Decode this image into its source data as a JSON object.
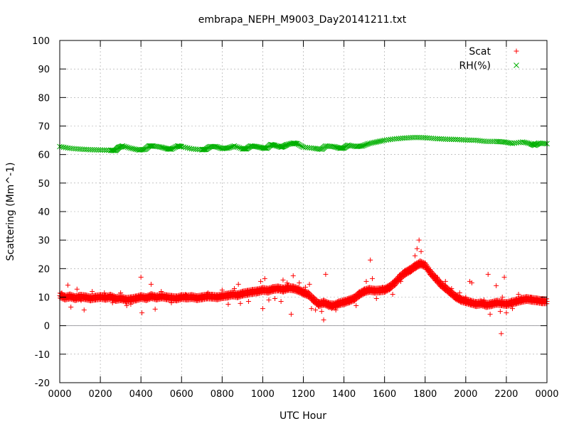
{
  "chart_data": {
    "type": "scatter",
    "title": "embrapa_NEPH_M9003_Day20141211.txt",
    "xlabel": "UTC Hour",
    "ylabel": "Scattering (Mm^-1)",
    "xlim": [
      0,
      24
    ],
    "ylim": [
      -20,
      100
    ],
    "grid": true,
    "legend_position": "top-right",
    "x_tick_values": [
      0,
      2,
      4,
      6,
      8,
      10,
      12,
      14,
      16,
      18,
      20,
      22,
      24
    ],
    "x_tick_labels": [
      "0000",
      "0200",
      "0400",
      "0600",
      "0800",
      "1000",
      "1200",
      "1400",
      "1600",
      "1800",
      "2000",
      "2200",
      "0000"
    ],
    "y_ticks": [
      -20,
      -10,
      0,
      10,
      20,
      30,
      40,
      50,
      60,
      70,
      80,
      90,
      100
    ],
    "zero_line": 0,
    "series": [
      {
        "name": "Scat",
        "marker": "plus",
        "color": "#ff0000",
        "points": [
          [
            0.0,
            10.5
          ],
          [
            0.25,
            9.8
          ],
          [
            0.5,
            10.2
          ],
          [
            0.75,
            9.6
          ],
          [
            1.0,
            10.1
          ],
          [
            1.25,
            9.9
          ],
          [
            1.5,
            9.5
          ],
          [
            1.75,
            9.8
          ],
          [
            2.0,
            10.0
          ],
          [
            2.25,
            9.7
          ],
          [
            2.5,
            10.1
          ],
          [
            2.75,
            9.3
          ],
          [
            3.0,
            9.6
          ],
          [
            3.25,
            9.0
          ],
          [
            3.5,
            9.2
          ],
          [
            3.75,
            9.5
          ],
          [
            4.0,
            10.0
          ],
          [
            4.25,
            9.6
          ],
          [
            4.5,
            10.3
          ],
          [
            4.75,
            9.8
          ],
          [
            5.0,
            10.2
          ],
          [
            5.25,
            9.9
          ],
          [
            5.5,
            9.7
          ],
          [
            5.75,
            9.5
          ],
          [
            6.0,
            10.0
          ],
          [
            6.25,
            9.8
          ],
          [
            6.5,
            10.0
          ],
          [
            6.75,
            9.6
          ],
          [
            7.0,
            9.9
          ],
          [
            7.25,
            10.2
          ],
          [
            7.5,
            10.1
          ],
          [
            7.75,
            9.9
          ],
          [
            8.0,
            10.3
          ],
          [
            8.25,
            10.5
          ],
          [
            8.5,
            10.9
          ],
          [
            8.75,
            10.6
          ],
          [
            9.0,
            11.2
          ],
          [
            9.25,
            11.5
          ],
          [
            9.5,
            11.8
          ],
          [
            9.75,
            12.0
          ],
          [
            10.0,
            12.5
          ],
          [
            10.25,
            12.2
          ],
          [
            10.5,
            12.8
          ],
          [
            10.75,
            13.0
          ],
          [
            11.0,
            12.6
          ],
          [
            11.25,
            13.2
          ],
          [
            11.5,
            13.0
          ],
          [
            11.75,
            12.4
          ],
          [
            12.0,
            11.5
          ],
          [
            12.25,
            10.8
          ],
          [
            12.5,
            9.0
          ],
          [
            12.75,
            7.5
          ],
          [
            13.0,
            8.0
          ],
          [
            13.25,
            7.2
          ],
          [
            13.5,
            7.0
          ],
          [
            13.75,
            7.8
          ],
          [
            14.0,
            8.2
          ],
          [
            14.25,
            8.8
          ],
          [
            14.5,
            9.5
          ],
          [
            14.75,
            11.0
          ],
          [
            15.0,
            12.0
          ],
          [
            15.25,
            12.5
          ],
          [
            15.5,
            12.2
          ],
          [
            15.75,
            12.3
          ],
          [
            16.0,
            12.5
          ],
          [
            16.25,
            13.5
          ],
          [
            16.5,
            15.0
          ],
          [
            16.75,
            17.0
          ],
          [
            17.0,
            18.5
          ],
          [
            17.25,
            19.5
          ],
          [
            17.5,
            20.8
          ],
          [
            17.75,
            21.8
          ],
          [
            18.0,
            21.0
          ],
          [
            18.25,
            18.5
          ],
          [
            18.5,
            16.5
          ],
          [
            18.75,
            14.5
          ],
          [
            19.0,
            13.0
          ],
          [
            19.25,
            11.5
          ],
          [
            19.5,
            10.0
          ],
          [
            19.75,
            9.0
          ],
          [
            20.0,
            8.5
          ],
          [
            20.25,
            8.0
          ],
          [
            20.5,
            7.5
          ],
          [
            20.75,
            7.8
          ],
          [
            21.0,
            7.2
          ],
          [
            21.25,
            7.5
          ],
          [
            21.5,
            8.0
          ],
          [
            21.75,
            7.8
          ],
          [
            22.0,
            7.5
          ],
          [
            22.25,
            8.0
          ],
          [
            22.5,
            8.5
          ],
          [
            22.75,
            9.0
          ],
          [
            23.0,
            9.3
          ],
          [
            23.25,
            9.0
          ],
          [
            23.5,
            8.8
          ],
          [
            23.75,
            8.5
          ],
          [
            24.0,
            8.5
          ]
        ],
        "outliers": [
          [
            0.1,
            11.5
          ],
          [
            0.4,
            14.2
          ],
          [
            0.55,
            6.5
          ],
          [
            0.85,
            12.8
          ],
          [
            1.05,
            8.8
          ],
          [
            1.2,
            5.5
          ],
          [
            1.6,
            12.0
          ],
          [
            2.2,
            11.5
          ],
          [
            2.6,
            8.0
          ],
          [
            3.0,
            11.5
          ],
          [
            3.3,
            7.0
          ],
          [
            3.5,
            7.5
          ],
          [
            4.0,
            17.0
          ],
          [
            4.05,
            4.5
          ],
          [
            4.5,
            14.5
          ],
          [
            4.7,
            5.8
          ],
          [
            5.0,
            12.0
          ],
          [
            5.5,
            8.0
          ],
          [
            6.2,
            11.0
          ],
          [
            6.8,
            9.5
          ],
          [
            7.3,
            11.5
          ],
          [
            8.0,
            12.5
          ],
          [
            8.3,
            7.5
          ],
          [
            8.6,
            13.0
          ],
          [
            8.8,
            14.5
          ],
          [
            8.9,
            7.8
          ],
          [
            9.3,
            8.5
          ],
          [
            9.9,
            15.5
          ],
          [
            10.0,
            6.0
          ],
          [
            10.1,
            16.5
          ],
          [
            10.3,
            9.0
          ],
          [
            10.6,
            9.5
          ],
          [
            10.9,
            8.5
          ],
          [
            11.0,
            16.0
          ],
          [
            11.2,
            15.0
          ],
          [
            11.4,
            4.0
          ],
          [
            11.5,
            17.5
          ],
          [
            11.8,
            15.0
          ],
          [
            12.1,
            13.5
          ],
          [
            12.3,
            14.5
          ],
          [
            12.4,
            6.0
          ],
          [
            12.6,
            5.5
          ],
          [
            12.9,
            5.0
          ],
          [
            13.0,
            2.0
          ],
          [
            13.1,
            18.0
          ],
          [
            13.4,
            6.0
          ],
          [
            13.6,
            5.5
          ],
          [
            14.2,
            9.0
          ],
          [
            14.6,
            7.0
          ],
          [
            15.1,
            15.5
          ],
          [
            15.3,
            23.0
          ],
          [
            15.4,
            16.5
          ],
          [
            15.6,
            9.5
          ],
          [
            15.9,
            13.5
          ],
          [
            16.4,
            11.0
          ],
          [
            16.8,
            15.5
          ],
          [
            17.3,
            19.0
          ],
          [
            17.5,
            24.5
          ],
          [
            17.6,
            27.0
          ],
          [
            17.7,
            30.0
          ],
          [
            17.8,
            26.0
          ],
          [
            17.9,
            21.5
          ],
          [
            18.2,
            19.0
          ],
          [
            18.6,
            17.0
          ],
          [
            19.0,
            15.5
          ],
          [
            19.3,
            13.0
          ],
          [
            19.7,
            11.5
          ],
          [
            20.0,
            10.0
          ],
          [
            20.2,
            15.5
          ],
          [
            20.3,
            15.0
          ],
          [
            20.5,
            8.5
          ],
          [
            20.9,
            9.0
          ],
          [
            21.1,
            18.0
          ],
          [
            21.2,
            4.0
          ],
          [
            21.5,
            14.0
          ],
          [
            21.7,
            5.0
          ],
          [
            21.75,
            -2.8
          ],
          [
            21.8,
            10.0
          ],
          [
            21.9,
            17.0
          ],
          [
            22.0,
            4.5
          ],
          [
            22.3,
            6.0
          ],
          [
            22.6,
            11.0
          ],
          [
            23.2,
            10.0
          ],
          [
            23.8,
            9.5
          ]
        ]
      },
      {
        "name": "RH(%)",
        "marker": "cross",
        "color": "#00b000",
        "points": [
          [
            0.0,
            62.8
          ],
          [
            0.5,
            62.2
          ],
          [
            1.0,
            61.9
          ],
          [
            1.5,
            61.7
          ],
          [
            2.0,
            61.6
          ],
          [
            2.5,
            61.5
          ],
          [
            2.75,
            61.4
          ],
          [
            2.9,
            62.5
          ],
          [
            3.1,
            63.0
          ],
          [
            3.5,
            62.2
          ],
          [
            3.9,
            61.6
          ],
          [
            4.2,
            61.8
          ],
          [
            4.4,
            63.0
          ],
          [
            4.6,
            63.0
          ],
          [
            5.0,
            62.6
          ],
          [
            5.3,
            62.0
          ],
          [
            5.5,
            61.9
          ],
          [
            5.8,
            63.0
          ],
          [
            6.0,
            62.8
          ],
          [
            6.5,
            62.0
          ],
          [
            7.0,
            61.7
          ],
          [
            7.2,
            61.8
          ],
          [
            7.4,
            62.8
          ],
          [
            7.7,
            62.8
          ],
          [
            8.0,
            62.1
          ],
          [
            8.3,
            62.3
          ],
          [
            8.6,
            63.0
          ],
          [
            9.0,
            62.0
          ],
          [
            9.2,
            62.0
          ],
          [
            9.4,
            63.0
          ],
          [
            9.7,
            62.8
          ],
          [
            10.0,
            62.3
          ],
          [
            10.2,
            62.2
          ],
          [
            10.4,
            63.5
          ],
          [
            10.6,
            63.2
          ],
          [
            10.9,
            62.6
          ],
          [
            11.0,
            62.8
          ],
          [
            11.2,
            63.5
          ],
          [
            11.5,
            64.0
          ],
          [
            11.7,
            63.8
          ],
          [
            12.0,
            62.6
          ],
          [
            12.5,
            62.2
          ],
          [
            12.9,
            61.8
          ],
          [
            13.1,
            63.0
          ],
          [
            13.5,
            62.8
          ],
          [
            13.8,
            62.2
          ],
          [
            14.0,
            62.3
          ],
          [
            14.2,
            63.3
          ],
          [
            14.6,
            62.8
          ],
          [
            14.9,
            63.0
          ],
          [
            15.2,
            63.8
          ],
          [
            15.6,
            64.4
          ],
          [
            16.0,
            65.0
          ],
          [
            16.5,
            65.5
          ],
          [
            17.0,
            65.8
          ],
          [
            17.5,
            66.0
          ],
          [
            18.0,
            65.9
          ],
          [
            18.5,
            65.6
          ],
          [
            19.0,
            65.4
          ],
          [
            19.5,
            65.3
          ],
          [
            20.0,
            65.1
          ],
          [
            20.5,
            65.0
          ],
          [
            21.0,
            64.6
          ],
          [
            21.5,
            64.6
          ],
          [
            21.9,
            64.4
          ],
          [
            22.3,
            63.9
          ],
          [
            22.8,
            64.4
          ],
          [
            23.2,
            63.8
          ],
          [
            23.4,
            63.2
          ],
          [
            23.6,
            64.0
          ],
          [
            24.0,
            63.8
          ]
        ]
      }
    ]
  }
}
